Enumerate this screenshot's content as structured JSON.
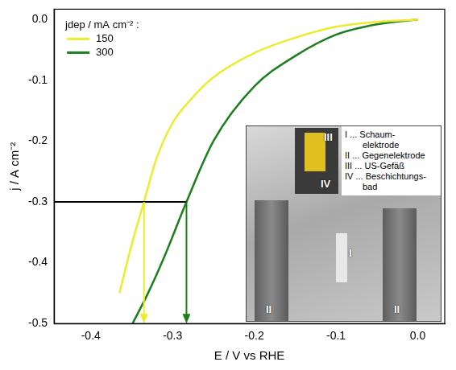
{
  "chart_data": {
    "type": "line",
    "x_label": "E / V vs RHE",
    "y_label": "j / A cm⁻²",
    "legend_title": "jdep / mA cm⁻² :",
    "legend": "upper left",
    "grid": false,
    "xlim": [
      -0.445,
      0.033
    ],
    "xticks": [
      -0.4,
      -0.3,
      -0.2,
      -0.1,
      {
        "value": 0,
        "label": "0.0"
      }
    ],
    "ylim": [
      -0.5,
      0.017
    ],
    "yticks": [
      {
        "value": 0,
        "label": "0.0"
      },
      -0.1,
      -0.2,
      -0.3,
      -0.4,
      -0.5
    ],
    "series": [
      {
        "name": "150",
        "color": "#ecec2c",
        "x": [
          0,
          -0.05,
          -0.1,
          -0.15,
          -0.2,
          -0.25,
          -0.28,
          -0.3,
          -0.32,
          -0.335,
          -0.35,
          -0.365
        ],
        "values": [
          0,
          -0.004,
          -0.012,
          -0.03,
          -0.055,
          -0.095,
          -0.135,
          -0.17,
          -0.23,
          -0.3,
          -0.37,
          -0.45
        ]
      },
      {
        "name": "300",
        "color": "#1e7d1e",
        "x": [
          0,
          -0.05,
          -0.1,
          -0.15,
          -0.2,
          -0.25,
          -0.283,
          -0.31,
          -0.33,
          -0.349
        ],
        "values": [
          0,
          -0.008,
          -0.025,
          -0.06,
          -0.11,
          -0.2,
          -0.3,
          -0.39,
          -0.45,
          -0.5
        ]
      }
    ],
    "guides": {
      "j": -0.3,
      "E": [
        -0.335,
        -0.283
      ]
    }
  },
  "inset": {
    "photo_labels": [
      "I",
      "II",
      "II",
      "III",
      "IV"
    ],
    "key": [
      [
        "I ... Schaum-",
        "elektrode"
      ],
      [
        "II ... Gegenelektrode"
      ],
      [
        "III ... US-Gefäß"
      ],
      [
        "IV ... Beschichtungs-",
        "bad"
      ]
    ]
  }
}
